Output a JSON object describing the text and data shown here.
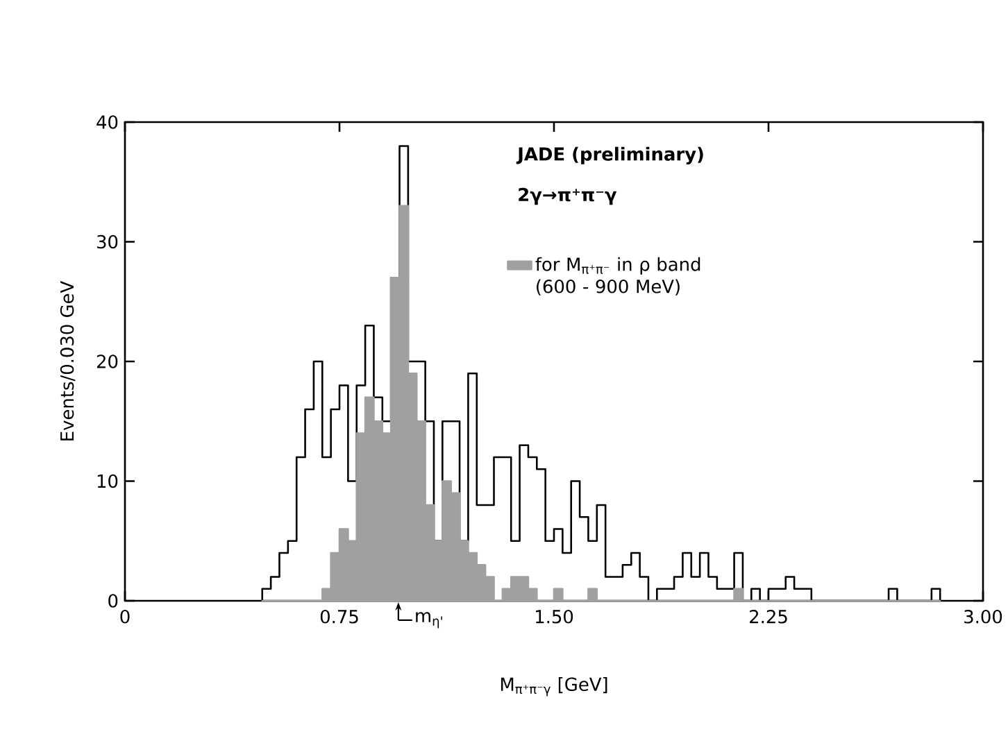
{
  "chart_data": {
    "type": "histogram",
    "xlabel": "M$_{π⁺π⁻γ}$ [GeV]",
    "ylabel": "Events/0.030 GeV",
    "annotations": [
      "JADE (preliminary)",
      "2γ→π⁺π⁻γ",
      {
        "text": "m$_{η'}$",
        "x": 0.956,
        "y": 0
      }
    ],
    "bins": [
      0.48,
      0.51,
      0.54,
      0.57,
      0.6,
      0.63,
      0.66,
      0.69,
      0.72,
      0.75,
      0.78,
      0.81,
      0.84,
      0.87,
      0.9,
      0.93,
      0.96,
      0.99,
      1.02,
      1.05,
      1.08,
      1.11,
      1.14,
      1.17,
      1.2,
      1.23,
      1.26,
      1.29,
      1.32,
      1.35,
      1.38,
      1.41,
      1.44,
      1.47,
      1.5,
      1.53,
      1.56,
      1.59,
      1.62,
      1.65,
      1.68,
      1.71,
      1.74,
      1.77,
      1.8,
      1.83,
      1.86,
      1.89,
      1.92,
      1.95,
      1.98,
      2.01,
      2.04,
      2.07,
      2.1,
      2.13,
      2.16,
      2.19,
      2.22,
      2.25,
      2.28,
      2.31,
      2.34,
      2.37,
      2.4,
      2.43,
      2.46,
      2.49,
      2.52,
      2.55,
      2.58,
      2.61,
      2.64,
      2.67,
      2.7,
      2.73,
      2.76,
      2.79,
      2.82,
      2.85
    ],
    "series": [
      {
        "color": "#000000",
        "values": [
          1,
          2,
          4,
          5,
          12,
          16,
          20,
          12,
          16,
          18,
          10,
          18,
          23,
          17,
          15,
          27,
          38,
          20,
          20,
          15,
          5,
          15,
          15,
          5,
          19,
          8,
          8,
          12,
          12,
          5,
          13,
          12,
          11,
          5,
          6,
          4,
          10,
          7,
          5,
          8,
          2,
          2,
          3,
          4,
          2,
          0,
          1,
          1,
          2,
          4,
          2,
          4,
          2,
          1,
          1,
          4,
          0,
          1,
          0,
          1,
          1,
          2,
          1,
          1,
          0,
          0,
          0,
          0,
          0,
          0,
          0,
          0,
          0,
          1,
          0,
          0,
          0,
          0,
          1
        ]
      },
      {
        "name": "for M$_{π⁺π⁻}$ in ρ band (600 - 900 MeV)",
        "color": "#a0a0a0",
        "values": [
          0,
          0,
          0,
          0,
          0,
          0,
          0,
          1,
          4,
          6,
          5,
          14,
          17,
          15,
          14,
          27,
          33,
          19,
          15,
          8,
          5,
          10,
          9,
          5,
          4,
          3,
          2,
          0,
          1,
          2,
          2,
          1,
          0,
          0,
          1,
          0,
          0,
          0,
          1,
          0,
          0,
          0,
          0,
          0,
          0,
          0,
          0,
          0,
          0,
          0,
          0,
          0,
          0,
          0,
          0,
          1,
          0,
          0,
          0,
          0,
          0,
          0,
          0,
          0,
          0,
          0,
          0,
          0,
          0,
          0,
          0,
          0,
          0,
          0,
          0,
          0,
          0,
          0,
          0
        ]
      }
    ],
    "xlim": [
      0,
      3
    ],
    "xticks": [
      0,
      0.75,
      {
        "value": 1.5,
        "label": "1.50"
      },
      2.25,
      {
        "value": 3,
        "label": "3.00"
      }
    ],
    "ylim": [
      0,
      40
    ],
    "yticks": [
      0,
      10,
      20,
      30,
      40
    ],
    "legend": "top right"
  }
}
